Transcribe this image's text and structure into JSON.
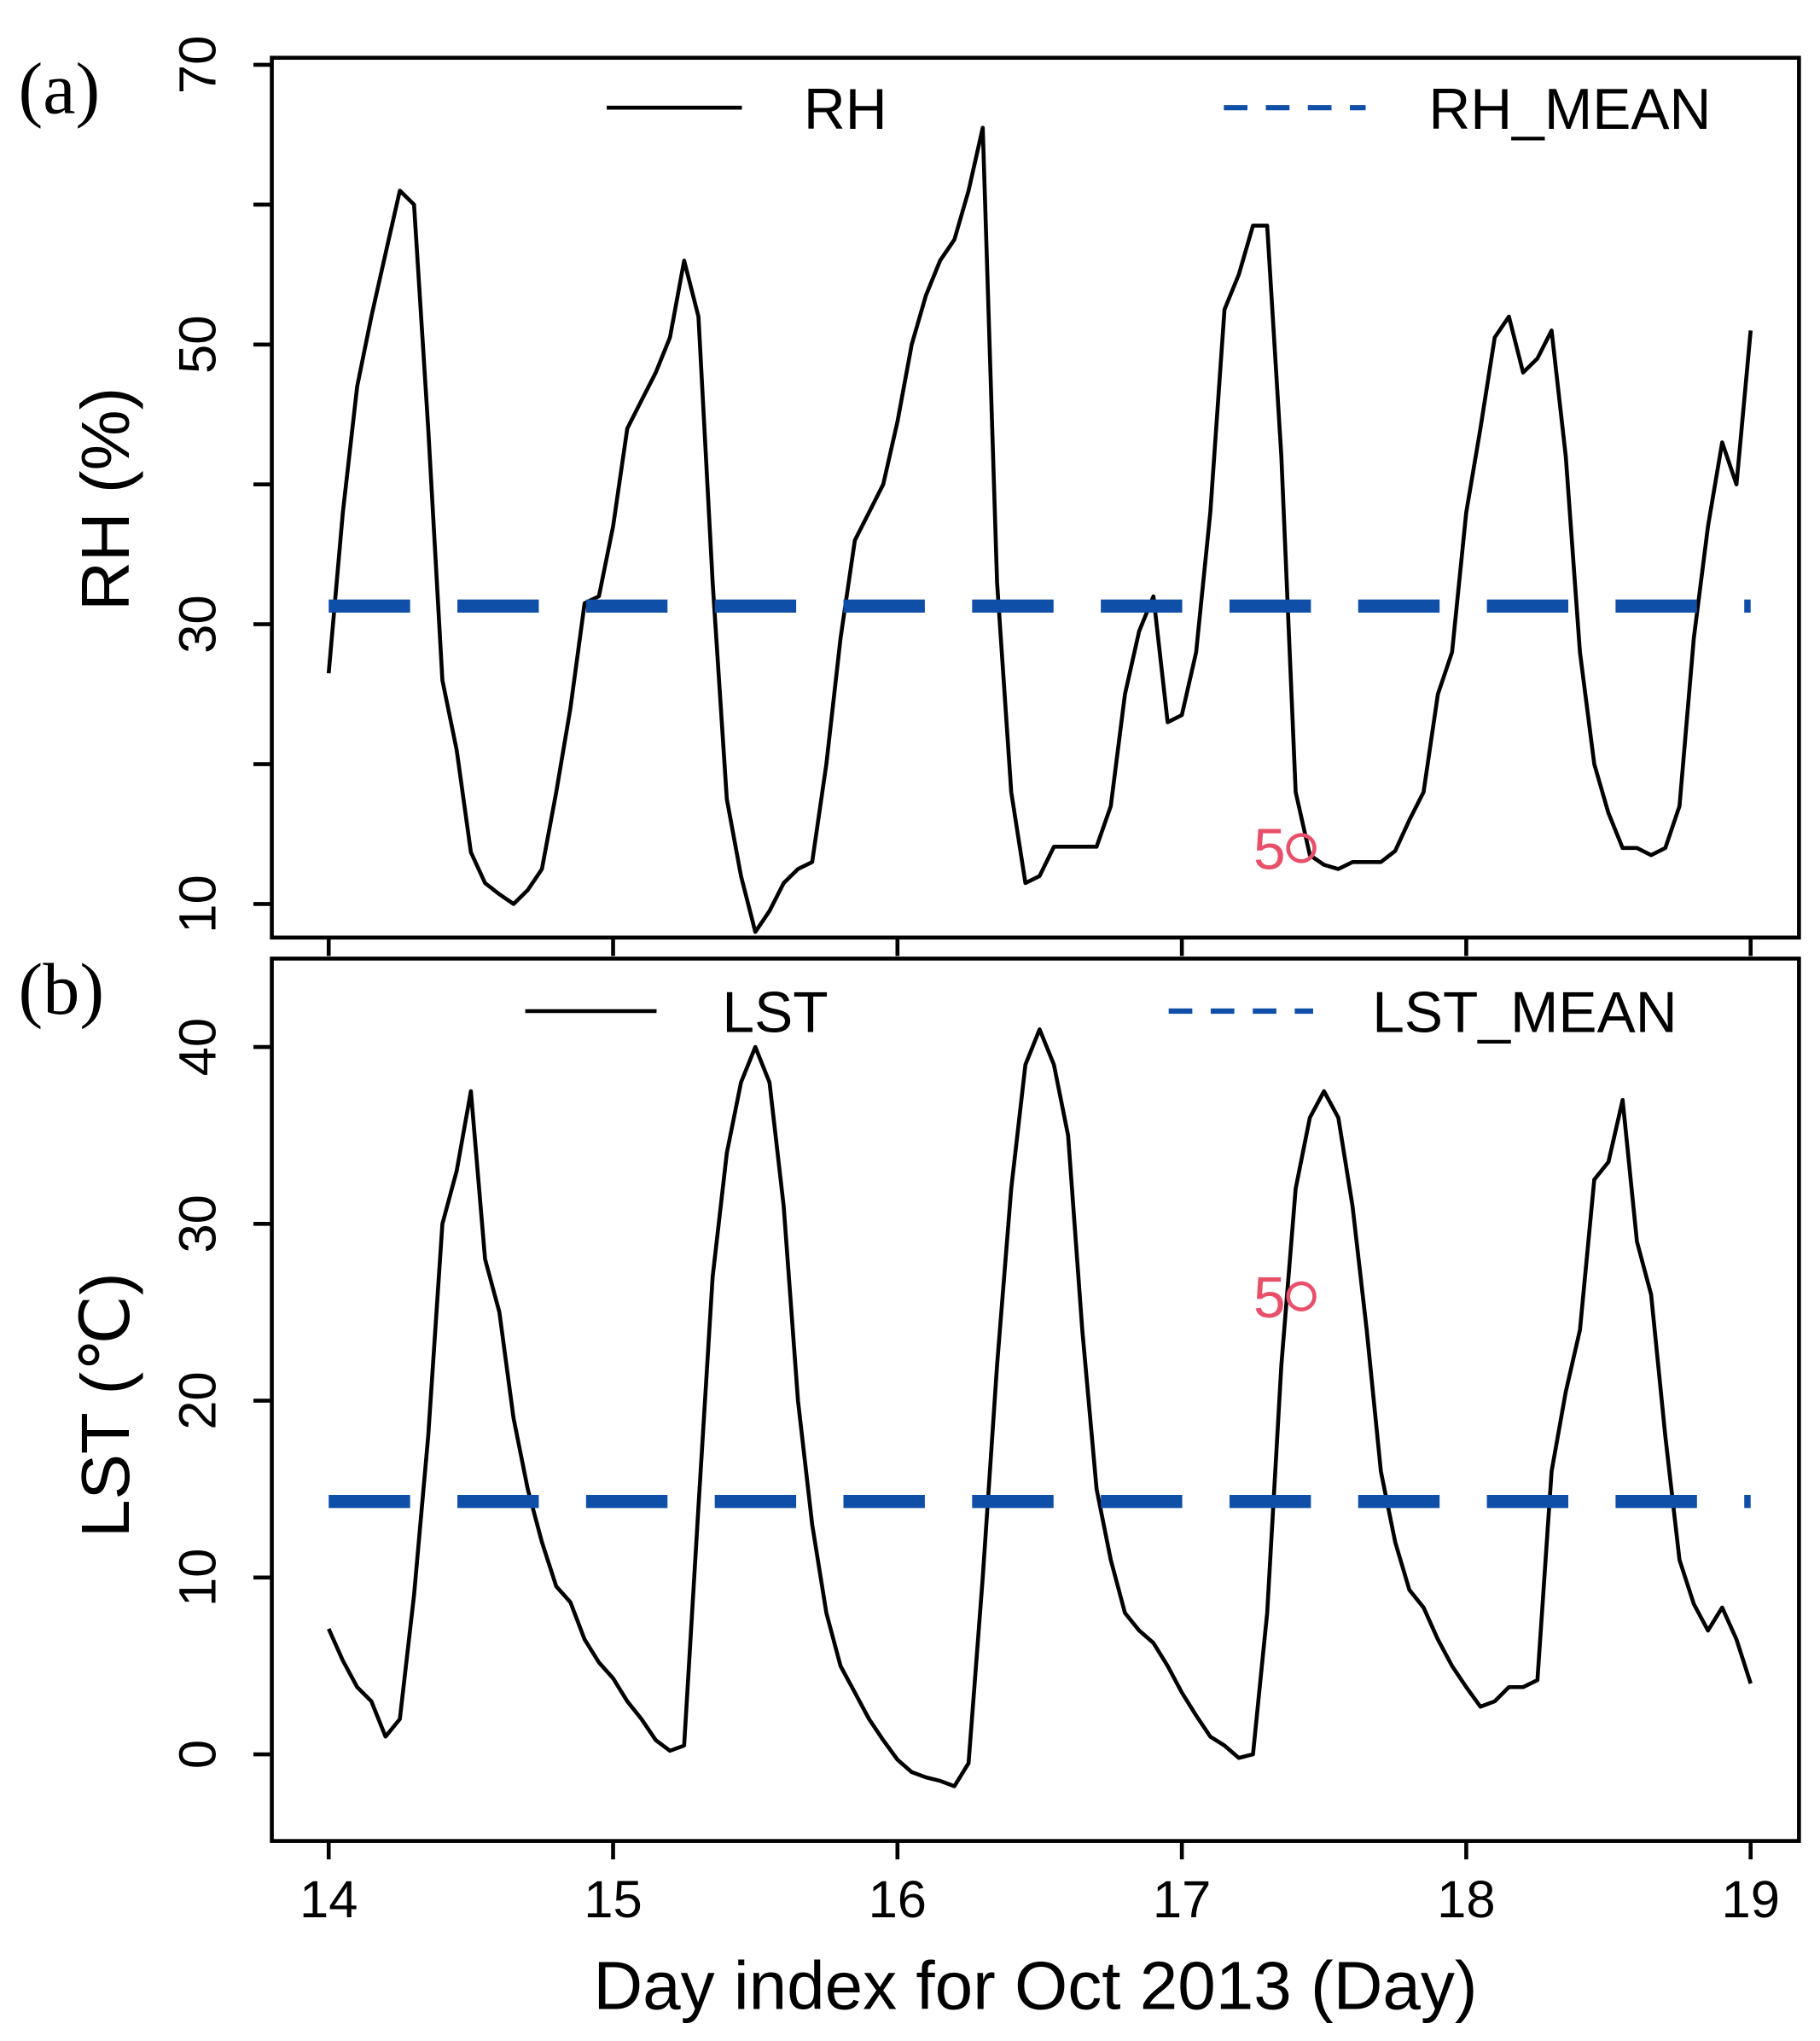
{
  "chart_data": [
    {
      "type": "line",
      "panel_label": "(a)",
      "ylabel": "RH (%)",
      "xlim": [
        13.8,
        19.17
      ],
      "xticks": [
        14,
        15,
        16,
        17,
        18,
        19
      ],
      "ylim": [
        7.6,
        70.5
      ],
      "yticks": [
        10,
        30,
        50,
        70
      ],
      "yminorticks": [
        20,
        40,
        60
      ],
      "x": [
        14,
        14.05,
        14.1,
        14.15,
        14.2,
        14.25,
        14.3,
        14.35,
        14.4,
        14.45,
        14.5,
        14.55,
        14.6,
        14.65,
        14.7,
        14.75,
        14.8,
        14.85,
        14.9,
        14.95,
        15,
        15.05,
        15.1,
        15.15,
        15.2,
        15.25,
        15.3,
        15.35,
        15.4,
        15.45,
        15.5,
        15.55,
        15.6,
        15.65,
        15.7,
        15.75,
        15.8,
        15.85,
        15.9,
        15.95,
        16,
        16.05,
        16.1,
        16.15,
        16.2,
        16.25,
        16.3,
        16.35,
        16.4,
        16.45,
        16.5,
        16.55,
        16.6,
        16.65,
        16.7,
        16.75,
        16.8,
        16.85,
        16.9,
        16.95,
        17,
        17.05,
        17.1,
        17.15,
        17.2,
        17.25,
        17.3,
        17.35,
        17.4,
        17.45,
        17.5,
        17.55,
        17.6,
        17.65,
        17.7,
        17.75,
        17.8,
        17.85,
        17.9,
        17.95,
        18,
        18.05,
        18.1,
        18.15,
        18.2,
        18.25,
        18.3,
        18.35,
        18.4,
        18.45,
        18.5,
        18.55,
        18.6,
        18.65,
        18.7,
        18.75,
        18.8,
        18.85,
        18.9,
        18.95,
        19
      ],
      "series": [
        {
          "name": "RH",
          "color": "#000000",
          "style": "solid",
          "values": [
            26.5,
            38,
            47,
            52,
            56.5,
            61,
            60,
            44,
            26,
            21,
            13.7,
            11.5,
            10.7,
            10,
            11,
            12.5,
            18,
            24,
            31.5,
            32,
            37,
            44,
            46,
            48,
            50.5,
            56,
            52,
            33,
            17.5,
            12,
            8,
            9.5,
            11.5,
            12.5,
            13,
            20,
            29,
            36,
            38,
            40,
            44.5,
            50,
            53.5,
            56,
            57.5,
            61,
            65.5,
            33,
            18,
            11.5,
            12,
            14.1,
            14.1,
            14.1,
            14.1,
            17,
            25,
            29.5,
            32,
            23,
            23.5,
            28,
            38,
            52.5,
            55,
            58.5,
            58.5,
            42,
            18,
            13.5,
            12.8,
            12.5,
            13,
            13,
            13,
            13.8,
            16,
            18,
            25,
            28,
            38,
            44,
            50.5,
            52,
            48,
            49,
            51,
            42,
            28,
            20,
            16.5,
            14,
            14,
            13.5,
            14,
            17,
            29,
            37,
            43,
            40,
            51
          ]
        },
        {
          "name": "RH_MEAN",
          "color": "#0f4fa8",
          "style": "dashed",
          "value": 31.3
        }
      ],
      "annotations": [
        {
          "text": "5",
          "x": 17.42,
          "y": 14.0,
          "color": "#e8506a"
        }
      ]
    },
    {
      "type": "line",
      "panel_label": "(b)",
      "ylabel": "LST (℃)",
      "xlabel": "Day index for Oct 2013 (Day)",
      "xlim": [
        13.8,
        19.17
      ],
      "xticks": [
        14,
        15,
        16,
        17,
        18,
        19
      ],
      "ylim": [
        -4.9,
        45
      ],
      "yticks": [
        0,
        10,
        20,
        30,
        40
      ],
      "x": [
        14,
        14.05,
        14.1,
        14.15,
        14.2,
        14.25,
        14.3,
        14.35,
        14.4,
        14.45,
        14.5,
        14.55,
        14.6,
        14.65,
        14.7,
        14.75,
        14.8,
        14.85,
        14.9,
        14.95,
        15,
        15.05,
        15.1,
        15.15,
        15.2,
        15.25,
        15.3,
        15.35,
        15.4,
        15.45,
        15.5,
        15.55,
        15.6,
        15.65,
        15.7,
        15.75,
        15.8,
        15.85,
        15.9,
        15.95,
        16,
        16.05,
        16.1,
        16.15,
        16.2,
        16.25,
        16.3,
        16.35,
        16.4,
        16.45,
        16.5,
        16.55,
        16.6,
        16.65,
        16.7,
        16.75,
        16.8,
        16.85,
        16.9,
        16.95,
        17,
        17.05,
        17.1,
        17.15,
        17.2,
        17.25,
        17.3,
        17.35,
        17.4,
        17.45,
        17.5,
        17.55,
        17.6,
        17.65,
        17.7,
        17.75,
        17.8,
        17.85,
        17.9,
        17.95,
        18,
        18.05,
        18.1,
        18.15,
        18.2,
        18.25,
        18.3,
        18.35,
        18.4,
        18.45,
        18.5,
        18.55,
        18.6,
        18.65,
        18.7,
        18.75,
        18.8,
        18.85,
        18.9,
        18.95,
        19
      ],
      "series": [
        {
          "name": "LST",
          "color": "#000000",
          "style": "solid",
          "values": [
            7.1,
            5.3,
            3.8,
            3.0,
            1.0,
            2,
            9,
            18,
            30,
            33,
            37.5,
            28,
            25,
            19,
            15,
            12,
            9.5,
            8.6,
            6.5,
            5.2,
            4.3,
            3,
            2,
            0.8,
            0.2,
            0.5,
            14,
            27,
            34,
            38,
            40,
            38,
            31,
            20,
            13,
            8,
            5,
            3.5,
            2,
            0.8,
            -0.3,
            -1,
            -1.3,
            -1.5,
            -1.8,
            -0.5,
            10,
            22,
            32,
            39,
            41,
            39,
            35,
            24,
            15,
            11,
            8,
            7,
            6.3,
            5,
            3.5,
            2.2,
            1,
            0.5,
            -0.2,
            0,
            8,
            22,
            32,
            36,
            37.5,
            36,
            31,
            24,
            16,
            12,
            9.3,
            8.3,
            6.5,
            5,
            3.8,
            2.7,
            3,
            3.8,
            3.8,
            4.2,
            16,
            20.5,
            24,
            32.5,
            33.5,
            37,
            29,
            26,
            18,
            11,
            8.5,
            7,
            8.3,
            6.5,
            4
          ]
        },
        {
          "name": "LST_MEAN",
          "color": "#0f4fa8",
          "style": "dashed",
          "value": 14.3
        }
      ],
      "annotations": [
        {
          "text": "5",
          "x": 17.42,
          "y": 25.9,
          "color": "#e8506a"
        }
      ]
    }
  ]
}
